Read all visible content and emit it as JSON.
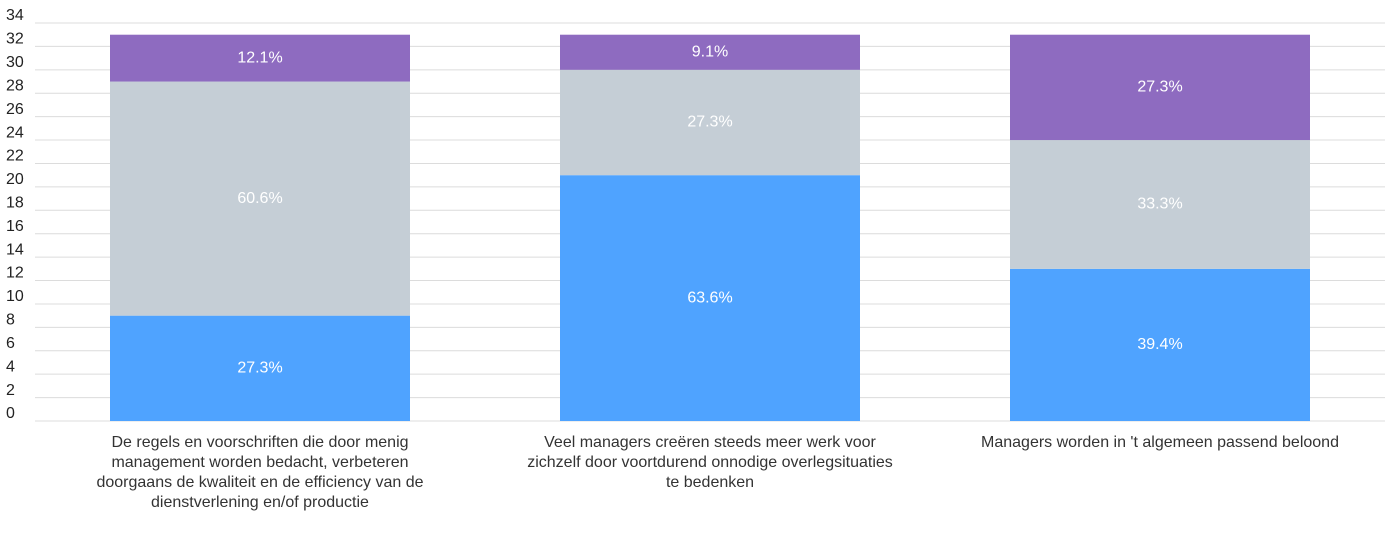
{
  "chart_data": {
    "type": "stacked_bar",
    "categories": [
      "De regels en voorschriften die door menig management worden bedacht, verbeteren doorgaans de kwaliteit en de efficiency van de dienstverlening en/of productie",
      "Veel managers creëren steeds meer werk voor zichzelf door voortdurend onnodige overlegsituaties te bedenken",
      "Managers worden in 't algemeen passend beloond"
    ],
    "series": [
      {
        "color": "#4fa3ff",
        "values": [
          9,
          21,
          13
        ],
        "value_labels": [
          "27.3%",
          "63.6%",
          "39.4%"
        ]
      },
      {
        "color": "#c5ced6",
        "values": [
          20,
          9,
          11
        ],
        "value_labels": [
          "60.6%",
          "27.3%",
          "33.3%"
        ]
      },
      {
        "color": "#8e6bc0",
        "values": [
          4,
          3,
          9
        ],
        "value_labels": [
          "12.1%",
          "9.1%",
          "27.3%"
        ]
      }
    ],
    "ylim": [
      0,
      34
    ],
    "yticks": [
      0,
      2,
      4,
      6,
      8,
      10,
      12,
      14,
      16,
      18,
      20,
      22,
      24,
      26,
      28,
      30,
      32,
      34
    ],
    "grid": true
  }
}
